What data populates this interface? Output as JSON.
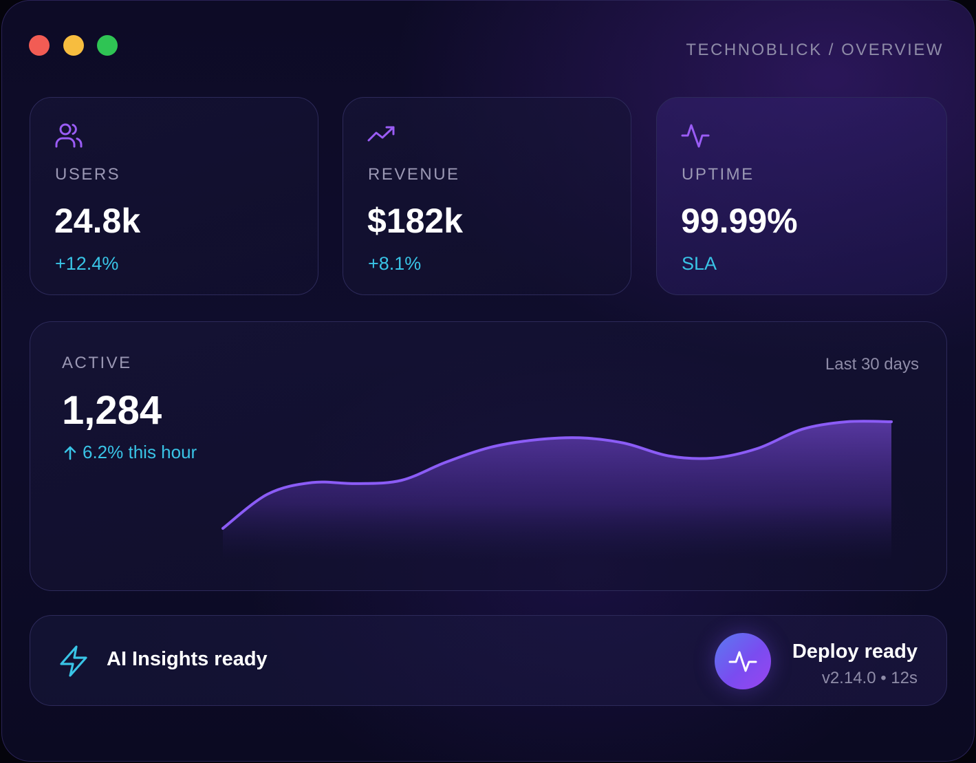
{
  "window": {
    "breadcrumb": "TECHNOBLICK / OVERVIEW"
  },
  "stats": [
    {
      "icon": "users-icon",
      "label": "USERS",
      "value": "24.8k",
      "sub": "+12.4%"
    },
    {
      "icon": "trending-up-icon",
      "label": "REVENUE",
      "value": "$182k",
      "sub": "+8.1%"
    },
    {
      "icon": "activity-icon",
      "label": "UPTIME",
      "value": "99.99%",
      "sub": "SLA"
    }
  ],
  "active": {
    "label": "ACTIVE",
    "range": "Last 30 days",
    "value": "1,284",
    "delta": "6.2% this hour"
  },
  "chart_data": {
    "type": "area",
    "values": [
      0.0,
      0.32,
      0.43,
      0.42,
      0.45,
      0.62,
      0.76,
      0.83,
      0.85,
      0.8,
      0.68,
      0.66,
      0.75,
      0.93,
      1.0,
      1.0
    ],
    "title": "",
    "xlabel": "",
    "ylabel": "",
    "grid": false,
    "line_color": "#8b5cf6",
    "fill_color": "#7c4ddc"
  },
  "status_bar": {
    "ai_icon": "bolt-icon",
    "ai_text": "AI Insights ready",
    "deploy_icon": "pulse-icon",
    "deploy_title": "Deploy ready",
    "deploy_meta": "v2.14.0 • 12s"
  },
  "colors": {
    "accent_purple": "#8b5cf6",
    "accent_cyan": "#39c4e6",
    "traffic_red": "#f25c54",
    "traffic_yellow": "#f7bd3f",
    "traffic_green": "#2fc454"
  }
}
